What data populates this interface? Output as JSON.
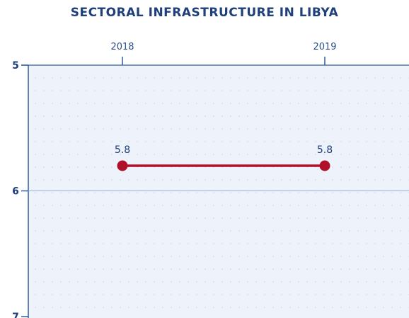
{
  "chart_data": {
    "type": "line",
    "title": "SECTORAL INFRASTRUCTURE IN LIBYA",
    "xlabel": "",
    "ylabel": "",
    "categories": [
      "2018",
      "2019"
    ],
    "y_inverted": true,
    "ylim": [
      5,
      7
    ],
    "yticks": [
      "5",
      "6",
      "7"
    ],
    "x_axis_position": "top",
    "grid": true,
    "series": [
      {
        "values": [
          5.8,
          5.8
        ],
        "data_labels": [
          "5.8",
          "5.8"
        ],
        "color": "#b0102a"
      }
    ],
    "colors": {
      "title": "#1f3f7a",
      "axis": "#2f5c9e",
      "plot_background": "#eef2fa",
      "grid_dots": "#c7d3e8"
    }
  }
}
